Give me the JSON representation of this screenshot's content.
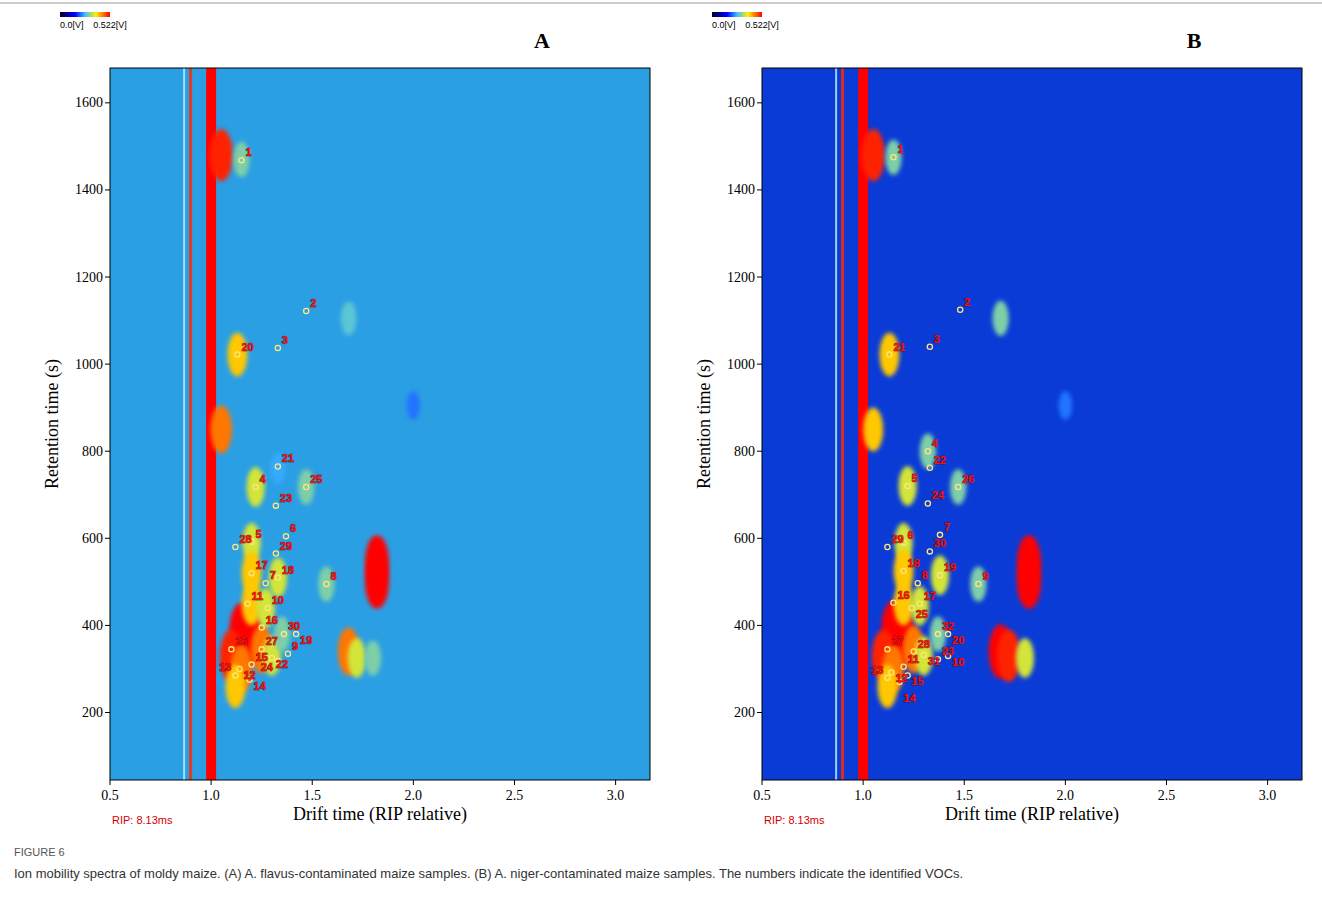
{
  "chart_data": [
    {
      "type": "heatmap",
      "title": "A",
      "xlabel": "Drift time (RIP relative)",
      "ylabel": "Retention time (s)",
      "color": "#2b9fe3",
      "xlim": [
        0.5,
        3.17
      ],
      "ylim": [
        45,
        1680
      ],
      "xticks": [
        0.5,
        {
          "value": 1,
          "label": "1.0"
        },
        1.5,
        {
          "value": 2,
          "label": "2.0"
        },
        2.5,
        {
          "value": 3,
          "label": "3.0"
        }
      ],
      "yticks": [
        200,
        400,
        600,
        800,
        1000,
        1200,
        1400,
        1600
      ],
      "colorbar": {
        "range": [
          0,
          0.522
        ],
        "ticks": [
          {
            "value": 0,
            "label": "0.0[V]"
          },
          {
            "value": 0.522,
            "label": "0.522[V]"
          }
        ]
      },
      "rip_x": 1.0,
      "annotations": [
        "RIP: 8.13ms"
      ],
      "spots": [
        {
          "x": 1.05,
          "y": 1480,
          "intensity": 0.5
        },
        {
          "x": 1.15,
          "y": 1470,
          "intensity": 0.3
        },
        {
          "x": 1.05,
          "y": 850,
          "intensity": 0.45
        },
        {
          "x": 1.13,
          "y": 1022,
          "intensity": 0.4
        },
        {
          "x": 1.68,
          "y": 1105,
          "intensity": 0.28
        },
        {
          "x": 2.0,
          "y": 905,
          "intensity": 0.22
        },
        {
          "x": 1.82,
          "y": 545,
          "intensity": 0.522
        },
        {
          "x": 1.82,
          "y": 500,
          "intensity": 0.522
        },
        {
          "x": 1.33,
          "y": 760,
          "intensity": 0.25
        },
        {
          "x": 1.22,
          "y": 718,
          "intensity": 0.35
        },
        {
          "x": 1.47,
          "y": 718,
          "intensity": 0.3
        },
        {
          "x": 1.2,
          "y": 590,
          "intensity": 0.35
        },
        {
          "x": 1.2,
          "y": 520,
          "intensity": 0.4
        },
        {
          "x": 1.33,
          "y": 510,
          "intensity": 0.35
        },
        {
          "x": 1.57,
          "y": 495,
          "intensity": 0.3
        },
        {
          "x": 1.15,
          "y": 390,
          "intensity": 0.522
        },
        {
          "x": 1.2,
          "y": 370,
          "intensity": 0.522
        },
        {
          "x": 1.1,
          "y": 330,
          "intensity": 0.5
        },
        {
          "x": 1.25,
          "y": 345,
          "intensity": 0.45
        },
        {
          "x": 1.68,
          "y": 340,
          "intensity": 0.45
        },
        {
          "x": 1.72,
          "y": 325,
          "intensity": 0.35
        },
        {
          "x": 1.8,
          "y": 325,
          "intensity": 0.3
        },
        {
          "x": 1.15,
          "y": 300,
          "intensity": 0.45
        },
        {
          "x": 1.12,
          "y": 260,
          "intensity": 0.4
        },
        {
          "x": 1.3,
          "y": 330,
          "intensity": 0.35
        },
        {
          "x": 1.35,
          "y": 380,
          "intensity": 0.3
        },
        {
          "x": 1.2,
          "y": 450,
          "intensity": 0.4
        },
        {
          "x": 1.27,
          "y": 440,
          "intensity": 0.35
        }
      ],
      "peaks": [
        {
          "label": "1",
          "x": 1.15,
          "y": 1468
        },
        {
          "label": "2",
          "x": 1.47,
          "y": 1122
        },
        {
          "label": "3",
          "x": 1.33,
          "y": 1037
        },
        {
          "label": "20",
          "x": 1.13,
          "y": 1022
        },
        {
          "label": "21",
          "x": 1.33,
          "y": 765
        },
        {
          "label": "4",
          "x": 1.22,
          "y": 718
        },
        {
          "label": "25",
          "x": 1.47,
          "y": 718
        },
        {
          "label": "23",
          "x": 1.32,
          "y": 675
        },
        {
          "label": "6",
          "x": 1.37,
          "y": 605
        },
        {
          "label": "5",
          "x": 1.2,
          "y": 592
        },
        {
          "label": "28",
          "x": 1.12,
          "y": 580
        },
        {
          "label": "29",
          "x": 1.32,
          "y": 565
        },
        {
          "label": "17",
          "x": 1.2,
          "y": 520
        },
        {
          "label": "18",
          "x": 1.33,
          "y": 510
        },
        {
          "label": "7",
          "x": 1.27,
          "y": 497
        },
        {
          "label": "8",
          "x": 1.57,
          "y": 495
        },
        {
          "label": "11",
          "x": 1.18,
          "y": 450
        },
        {
          "label": "10",
          "x": 1.28,
          "y": 440
        },
        {
          "label": "16",
          "x": 1.25,
          "y": 395
        },
        {
          "label": "30",
          "x": 1.36,
          "y": 380
        },
        {
          "label": "19",
          "x": 1.42,
          "y": 380
        },
        {
          "label": "26",
          "x": 1.1,
          "y": 345
        },
        {
          "label": "27",
          "x": 1.25,
          "y": 345
        },
        {
          "label": "9",
          "x": 1.38,
          "y": 335
        },
        {
          "label": "22",
          "x": 1.3,
          "y": 325
        },
        {
          "label": "15",
          "x": 1.2,
          "y": 310
        },
        {
          "label": "12",
          "x": 1.14,
          "y": 300
        },
        {
          "label": "13",
          "x": 1.12,
          "y": 285
        },
        {
          "label": "14",
          "x": 1.19,
          "y": 275
        },
        {
          "label": "24",
          "x": 1.33,
          "y": 318
        }
      ]
    },
    {
      "type": "heatmap",
      "title": "B",
      "xlabel": "Drift time (RIP relative)",
      "ylabel": "Retention time (s)",
      "color": "#0a3bd6",
      "xlim": [
        0.5,
        3.17
      ],
      "ylim": [
        45,
        1680
      ],
      "xticks": [
        0.5,
        {
          "value": 1,
          "label": "1.0"
        },
        1.5,
        {
          "value": 2,
          "label": "2.0"
        },
        2.5,
        {
          "value": 3,
          "label": "3.0"
        }
      ],
      "yticks": [
        200,
        400,
        600,
        800,
        1000,
        1200,
        1400,
        1600
      ],
      "colorbar": {
        "range": [
          0,
          0.522
        ],
        "ticks": [
          {
            "value": 0,
            "label": "0.0[V]"
          },
          {
            "value": 0.522,
            "label": "0.522[V]"
          }
        ]
      },
      "rip_x": 1.0,
      "annotations": [
        "RIP: 8.13ms"
      ],
      "spots": [
        {
          "x": 1.05,
          "y": 1480,
          "intensity": 0.5
        },
        {
          "x": 1.15,
          "y": 1475,
          "intensity": 0.3
        },
        {
          "x": 1.05,
          "y": 850,
          "intensity": 0.4
        },
        {
          "x": 1.13,
          "y": 1022,
          "intensity": 0.4
        },
        {
          "x": 1.68,
          "y": 1105,
          "intensity": 0.3
        },
        {
          "x": 2.0,
          "y": 905,
          "intensity": 0.22
        },
        {
          "x": 1.82,
          "y": 545,
          "intensity": 0.522
        },
        {
          "x": 1.82,
          "y": 500,
          "intensity": 0.522
        },
        {
          "x": 1.32,
          "y": 800,
          "intensity": 0.3
        },
        {
          "x": 1.22,
          "y": 720,
          "intensity": 0.35
        },
        {
          "x": 1.47,
          "y": 718,
          "intensity": 0.3
        },
        {
          "x": 1.2,
          "y": 590,
          "intensity": 0.35
        },
        {
          "x": 1.2,
          "y": 525,
          "intensity": 0.4
        },
        {
          "x": 1.38,
          "y": 515,
          "intensity": 0.35
        },
        {
          "x": 1.57,
          "y": 495,
          "intensity": 0.3
        },
        {
          "x": 1.15,
          "y": 395,
          "intensity": 0.522
        },
        {
          "x": 1.2,
          "y": 370,
          "intensity": 0.522
        },
        {
          "x": 1.1,
          "y": 330,
          "intensity": 0.5
        },
        {
          "x": 1.25,
          "y": 345,
          "intensity": 0.45
        },
        {
          "x": 1.68,
          "y": 340,
          "intensity": 0.522
        },
        {
          "x": 1.72,
          "y": 330,
          "intensity": 0.5
        },
        {
          "x": 1.8,
          "y": 325,
          "intensity": 0.35
        },
        {
          "x": 1.15,
          "y": 300,
          "intensity": 0.45
        },
        {
          "x": 1.12,
          "y": 260,
          "intensity": 0.4
        },
        {
          "x": 1.3,
          "y": 330,
          "intensity": 0.35
        },
        {
          "x": 1.37,
          "y": 380,
          "intensity": 0.3
        },
        {
          "x": 1.2,
          "y": 450,
          "intensity": 0.4
        },
        {
          "x": 1.28,
          "y": 445,
          "intensity": 0.35
        }
      ],
      "peaks": [
        {
          "label": "1",
          "x": 1.15,
          "y": 1475
        },
        {
          "label": "2",
          "x": 1.48,
          "y": 1125
        },
        {
          "label": "3",
          "x": 1.33,
          "y": 1040
        },
        {
          "label": "21",
          "x": 1.13,
          "y": 1022
        },
        {
          "label": "4",
          "x": 1.32,
          "y": 800
        },
        {
          "label": "22",
          "x": 1.33,
          "y": 762
        },
        {
          "label": "5",
          "x": 1.22,
          "y": 720
        },
        {
          "label": "26",
          "x": 1.47,
          "y": 718
        },
        {
          "label": "24",
          "x": 1.32,
          "y": 680
        },
        {
          "label": "7",
          "x": 1.38,
          "y": 608
        },
        {
          "label": "6",
          "x": 1.2,
          "y": 590
        },
        {
          "label": "29",
          "x": 1.12,
          "y": 580
        },
        {
          "label": "30",
          "x": 1.33,
          "y": 570
        },
        {
          "label": "18",
          "x": 1.2,
          "y": 525
        },
        {
          "label": "19",
          "x": 1.38,
          "y": 515
        },
        {
          "label": "8",
          "x": 1.27,
          "y": 497
        },
        {
          "label": "9",
          "x": 1.57,
          "y": 495
        },
        {
          "label": "16",
          "x": 1.15,
          "y": 452
        },
        {
          "label": "17",
          "x": 1.28,
          "y": 450
        },
        {
          "label": "25",
          "x": 1.24,
          "y": 440
        },
        {
          "label": "32",
          "x": 1.37,
          "y": 380
        },
        {
          "label": "20",
          "x": 1.42,
          "y": 380
        },
        {
          "label": "27",
          "x": 1.12,
          "y": 345
        },
        {
          "label": "28",
          "x": 1.25,
          "y": 340
        },
        {
          "label": "31",
          "x": 1.3,
          "y": 332
        },
        {
          "label": "10",
          "x": 1.42,
          "y": 330
        },
        {
          "label": "23",
          "x": 1.37,
          "y": 322
        },
        {
          "label": "11",
          "x": 1.2,
          "y": 305
        },
        {
          "label": "12",
          "x": 1.14,
          "y": 292
        },
        {
          "label": "13",
          "x": 1.12,
          "y": 280
        },
        {
          "label": "14",
          "x": 1.18,
          "y": 270
        },
        {
          "label": "15",
          "x": 1.22,
          "y": 285
        }
      ]
    }
  ],
  "figure_label": "FIGURE 6",
  "caption": "Ion mobility spectra of moldy maize. (A) A. flavus-contaminated maize samples. (B) A. niger-contaminated maize samples. The numbers indicate the identified VOCs."
}
